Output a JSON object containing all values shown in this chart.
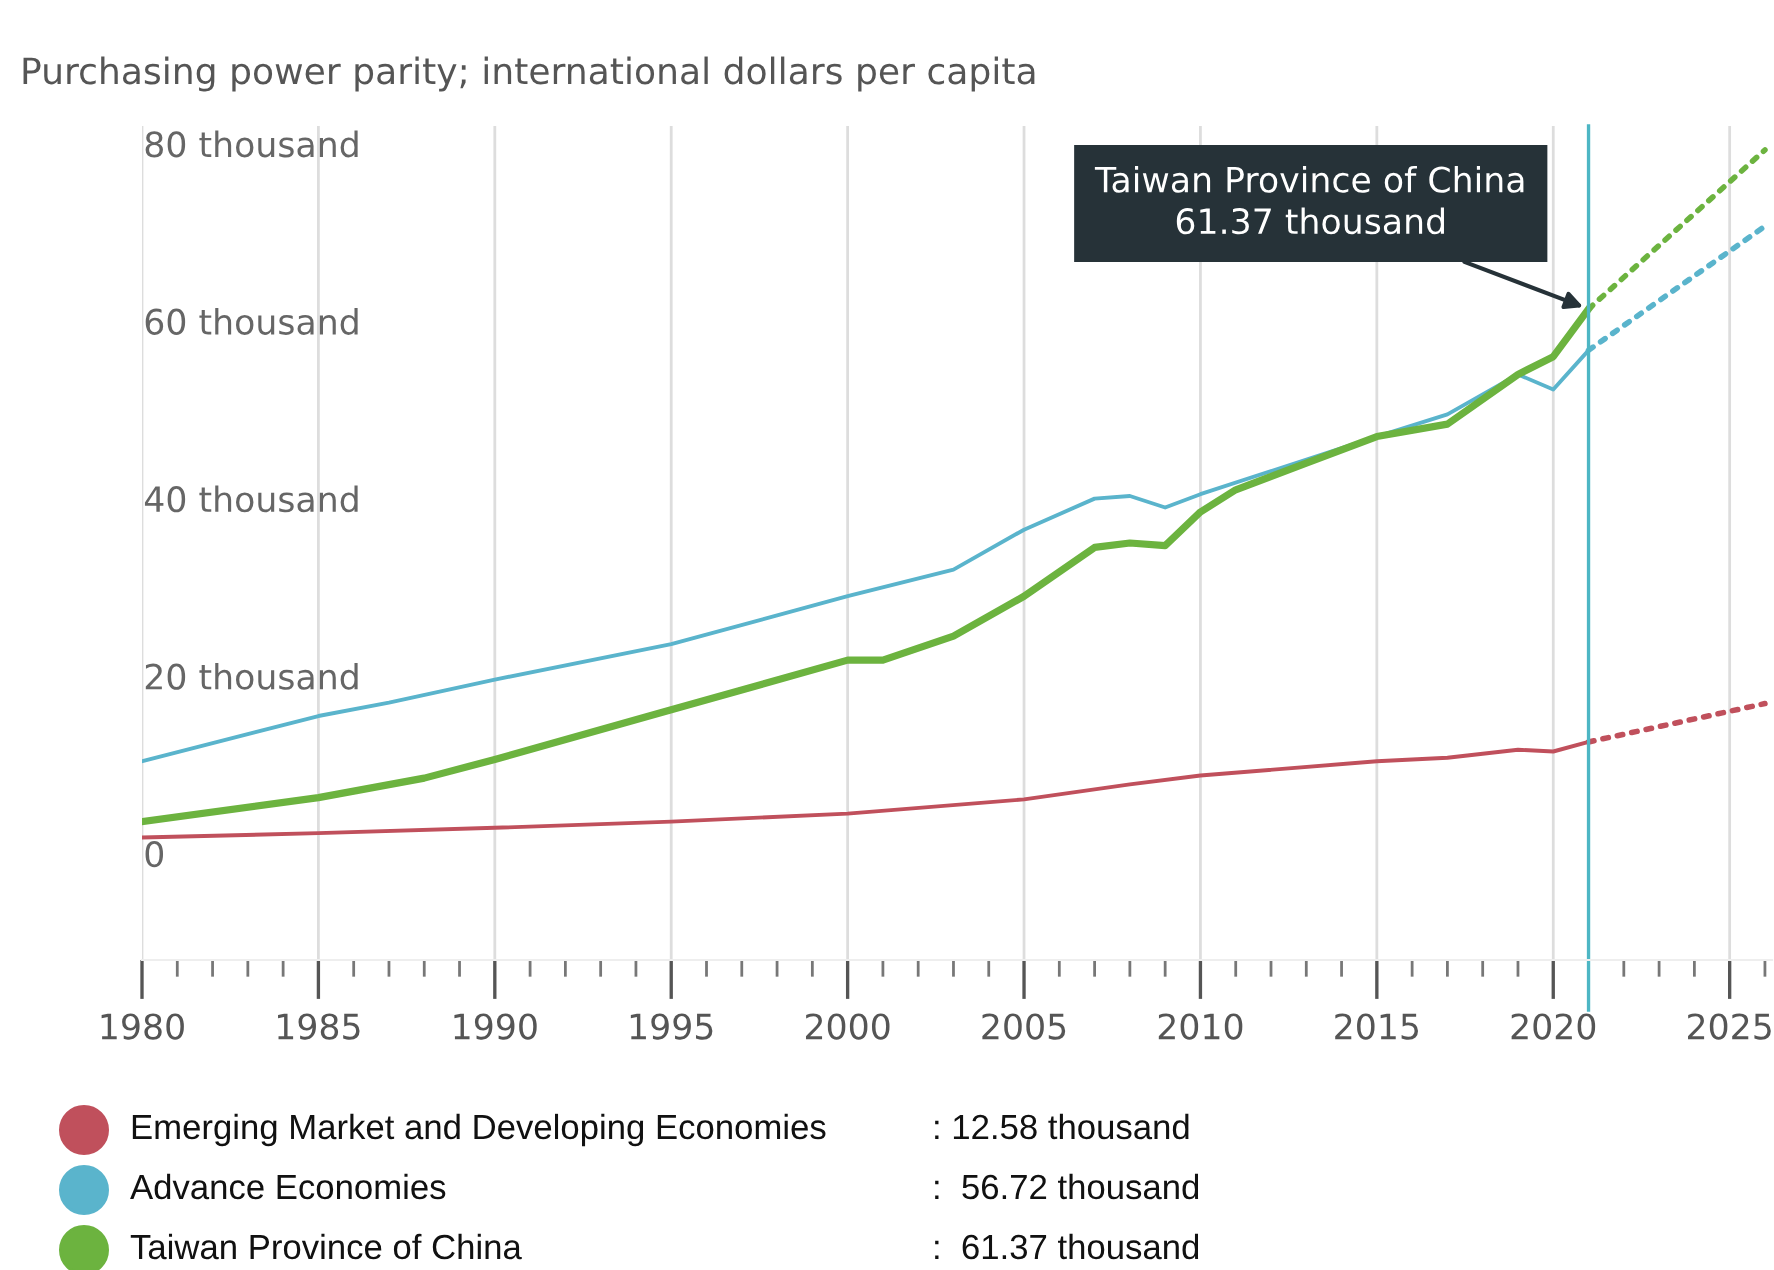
{
  "chart_data": {
    "type": "line",
    "title": "Purchasing power parity; international dollars per capita",
    "xlim": [
      1980,
      2026.2
    ],
    "xticks": [
      1980,
      1985,
      1990,
      1995,
      2000,
      2005,
      2010,
      2015,
      2020,
      2025
    ],
    "ylim": [
      -12,
      82
    ],
    "yticks": [
      {
        "value": 0,
        "label": "0"
      },
      {
        "value": 20,
        "label": "20 thousand"
      },
      {
        "value": 40,
        "label": "40 thousand"
      },
      {
        "value": 60,
        "label": "60 thousand"
      },
      {
        "value": 80,
        "label": "80 thousand"
      }
    ],
    "grid": "x",
    "legend": "bottom",
    "marker": "none",
    "line_style": "solid",
    "series": [
      {
        "name": "Emerging Market and Developing Economies",
        "color": "#c0505c",
        "x": [
          1980,
          1985,
          1990,
          1995,
          2000,
          2005,
          2008,
          2010,
          2015,
          2017,
          2019,
          2020,
          2021
        ],
        "values": [
          1.8,
          2.3,
          2.9,
          3.6,
          4.5,
          6.1,
          7.8,
          8.8,
          10.4,
          10.8,
          11.7,
          11.5,
          12.58
        ]
      },
      {
        "name": "Advance Economies",
        "color": "#5ab4cc",
        "x": [
          1980,
          1985,
          1987,
          1990,
          1995,
          2000,
          2003,
          2005,
          2007,
          2008,
          2009,
          2010,
          2015,
          2017,
          2019,
          2020,
          2021
        ],
        "values": [
          10.4,
          15.5,
          17,
          19.6,
          23.6,
          29,
          32,
          36.5,
          40,
          40.3,
          39,
          40.5,
          47,
          49.5,
          54,
          52.3,
          56.72
        ]
      },
      {
        "name": "Taiwan Province of China",
        "color": "#6cb33f",
        "x": [
          1980,
          1985,
          1988,
          1990,
          1995,
          2000,
          2001,
          2003,
          2005,
          2007,
          2008,
          2009,
          2010,
          2011,
          2013,
          2015,
          2017,
          2019,
          2020,
          2021
        ],
        "values": [
          3.6,
          6.3,
          8.5,
          10.6,
          16.2,
          21.8,
          21.8,
          24.5,
          29,
          34.5,
          35,
          34.7,
          38.5,
          41,
          44,
          47,
          48.4,
          54,
          56,
          61.37
        ]
      },
      {
        "color": "#c0505c",
        "line_style": "dotted",
        "x": [
          2021,
          2026
        ],
        "values": [
          12.58,
          16.9
        ]
      },
      {
        "color": "#5ab4cc",
        "line_style": "dotted",
        "x": [
          2021,
          2026
        ],
        "values": [
          56.72,
          70.7
        ]
      },
      {
        "color": "#6cb33f",
        "line_style": "dotted",
        "x": [
          2021,
          2026
        ],
        "values": [
          61.37,
          79.3
        ]
      }
    ],
    "ref_lines": [
      {
        "axis": "x",
        "value": 2021,
        "color": "#4db6c4"
      }
    ],
    "annotations": [
      {
        "text": "Taiwan Province of China\n61.37 thousand",
        "x": 2021,
        "y": 61.37
      },
      ": 12.58 thousand",
      ":  56.72 thousand",
      ":  61.37 thousand"
    ]
  }
}
